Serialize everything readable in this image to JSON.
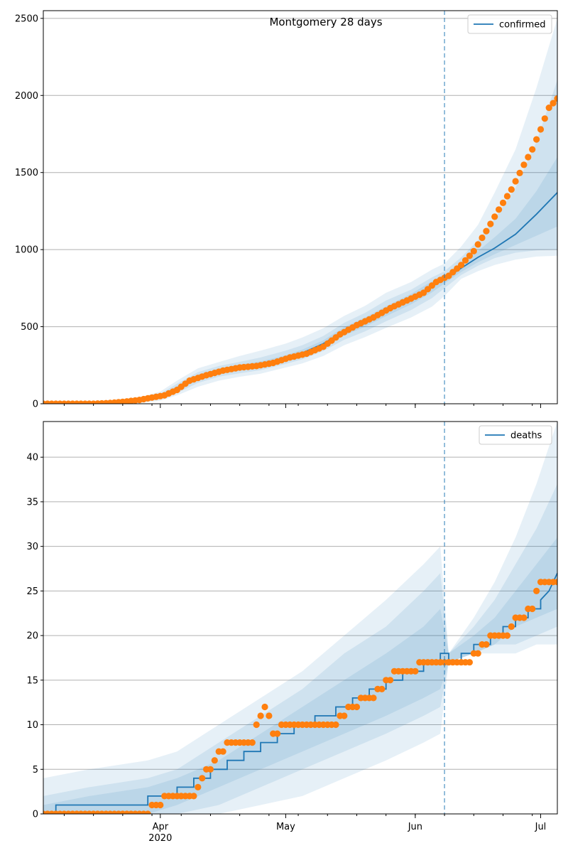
{
  "chart_data": [
    {
      "type": "line",
      "title": "Montgomery 28 days",
      "legend": {
        "entries": [
          "confirmed"
        ],
        "placement": "top-right"
      },
      "xlim": [
        "2020-03-04",
        "2020-07-05"
      ],
      "ylim": [
        0,
        2550
      ],
      "yticks": [
        0,
        500,
        1000,
        1500,
        2000,
        2500
      ],
      "grid": "horizontal",
      "forecast_start": "2020-06-08",
      "series": [
        {
          "name": "confirmed",
          "x": [
            "2020-03-04",
            "2020-03-19",
            "2020-03-25",
            "2020-04-01",
            "2020-04-05",
            "2020-04-10",
            "2020-04-15",
            "2020-04-20",
            "2020-04-25",
            "2020-05-01",
            "2020-05-05",
            "2020-05-10",
            "2020-05-15",
            "2020-05-20",
            "2020-05-25",
            "2020-05-31",
            "2020-06-05",
            "2020-06-08",
            "2020-06-12",
            "2020-06-16",
            "2020-06-20",
            "2020-06-25",
            "2020-06-30",
            "2020-07-05"
          ],
          "values": [
            0,
            0,
            10,
            45,
            100,
            175,
            210,
            235,
            255,
            295,
            330,
            390,
            470,
            530,
            600,
            680,
            760,
            810,
            880,
            950,
            1010,
            1100,
            1230,
            1370
          ]
        }
      ],
      "band_levels": [
        {
          "x": [
            "2020-03-04",
            "2020-03-19",
            "2020-03-25",
            "2020-04-01",
            "2020-04-05",
            "2020-04-10",
            "2020-04-15",
            "2020-04-20",
            "2020-04-25",
            "2020-05-01",
            "2020-05-05",
            "2020-05-10",
            "2020-05-15",
            "2020-05-20",
            "2020-05-25",
            "2020-05-31",
            "2020-06-05",
            "2020-06-08",
            "2020-06-12",
            "2020-06-16",
            "2020-06-20",
            "2020-06-25",
            "2020-06-30",
            "2020-07-05"
          ],
          "lower": [
            0,
            0,
            0,
            20,
            55,
            110,
            150,
            175,
            195,
            235,
            262,
            310,
            380,
            432,
            492,
            560,
            630,
            700,
            810,
            860,
            900,
            935,
            955,
            960
          ],
          "upper": [
            0,
            0,
            25,
            80,
            150,
            230,
            270,
            310,
            345,
            390,
            430,
            490,
            570,
            635,
            720,
            790,
            870,
            910,
            1020,
            1160,
            1370,
            1650,
            2050,
            2500
          ]
        },
        {
          "x": [
            "2020-03-04",
            "2020-03-19",
            "2020-03-25",
            "2020-04-01",
            "2020-04-05",
            "2020-04-10",
            "2020-04-15",
            "2020-04-20",
            "2020-04-25",
            "2020-05-01",
            "2020-05-05",
            "2020-05-10",
            "2020-05-15",
            "2020-05-20",
            "2020-05-25",
            "2020-05-31",
            "2020-06-05",
            "2020-06-08",
            "2020-06-12",
            "2020-06-16",
            "2020-06-20",
            "2020-06-25",
            "2020-06-30",
            "2020-07-05"
          ],
          "lower": [
            0,
            0,
            2,
            30,
            70,
            135,
            175,
            198,
            218,
            258,
            288,
            342,
            415,
            470,
            535,
            608,
            685,
            750,
            835,
            895,
            945,
            980,
            995,
            1000
          ],
          "upper": [
            0,
            0,
            18,
            65,
            130,
            205,
            245,
            272,
            300,
            345,
            380,
            440,
            525,
            590,
            670,
            740,
            820,
            860,
            950,
            1060,
            1200,
            1400,
            1700,
            2100
          ]
        },
        {
          "x": [
            "2020-03-04",
            "2020-03-19",
            "2020-03-25",
            "2020-04-01",
            "2020-04-05",
            "2020-04-10",
            "2020-04-15",
            "2020-04-20",
            "2020-04-25",
            "2020-05-01",
            "2020-05-05",
            "2020-05-10",
            "2020-05-15",
            "2020-05-20",
            "2020-05-25",
            "2020-05-31",
            "2020-06-05",
            "2020-06-08",
            "2020-06-12",
            "2020-06-16",
            "2020-06-20",
            "2020-06-25",
            "2020-06-30",
            "2020-07-05"
          ],
          "lower": [
            0,
            0,
            5,
            37,
            85,
            155,
            192,
            216,
            238,
            277,
            310,
            366,
            442,
            500,
            568,
            645,
            722,
            780,
            855,
            918,
            970,
            1030,
            1090,
            1150
          ],
          "upper": [
            0,
            0,
            14,
            55,
            115,
            190,
            228,
            254,
            275,
            315,
            352,
            412,
            498,
            560,
            632,
            713,
            795,
            835,
            905,
            990,
            1080,
            1200,
            1380,
            1600
          ]
        }
      ],
      "observed": {
        "x": [
          "2020-03-04",
          "2020-03-10",
          "2020-03-16",
          "2020-03-20",
          "2020-03-24",
          "2020-03-27",
          "2020-03-30",
          "2020-04-02",
          "2020-04-05",
          "2020-04-08",
          "2020-04-12",
          "2020-04-16",
          "2020-04-20",
          "2020-04-24",
          "2020-04-28",
          "2020-05-02",
          "2020-05-06",
          "2020-05-10",
          "2020-05-14",
          "2020-05-18",
          "2020-05-22",
          "2020-05-26",
          "2020-05-30",
          "2020-06-03",
          "2020-06-06",
          "2020-06-09",
          "2020-06-12",
          "2020-06-15",
          "2020-06-18",
          "2020-06-21",
          "2020-06-24",
          "2020-06-27",
          "2020-06-29",
          "2020-07-01",
          "2020-07-03",
          "2020-07-05"
        ],
        "values": [
          0,
          0,
          0,
          5,
          15,
          25,
          40,
          55,
          90,
          150,
          185,
          215,
          235,
          245,
          265,
          300,
          325,
          370,
          450,
          510,
          560,
          620,
          670,
          720,
          790,
          830,
          900,
          990,
          1120,
          1260,
          1390,
          1550,
          1650,
          1780,
          1920,
          1980
        ]
      }
    },
    {
      "type": "line",
      "legend": {
        "entries": [
          "deaths"
        ],
        "placement": "top-right"
      },
      "xlim": [
        "2020-03-04",
        "2020-07-05"
      ],
      "ylim": [
        0,
        44
      ],
      "yticks": [
        0,
        5,
        10,
        15,
        20,
        25,
        30,
        35,
        40
      ],
      "xticks": [
        "Apr",
        "May",
        "Jun",
        "Jul"
      ],
      "xtick_sublabel": "2020",
      "grid": "horizontal",
      "forecast_start": "2020-06-08",
      "series": [
        {
          "name": "deaths",
          "x": [
            "2020-03-04",
            "2020-03-07",
            "2020-03-07",
            "2020-03-29",
            "2020-03-29",
            "2020-04-05",
            "2020-04-05",
            "2020-04-09",
            "2020-04-09",
            "2020-04-13",
            "2020-04-13",
            "2020-04-17",
            "2020-04-17",
            "2020-04-21",
            "2020-04-21",
            "2020-04-25",
            "2020-04-25",
            "2020-04-29",
            "2020-04-29",
            "2020-05-03",
            "2020-05-03",
            "2020-05-08",
            "2020-05-08",
            "2020-05-13",
            "2020-05-13",
            "2020-05-17",
            "2020-05-17",
            "2020-05-21",
            "2020-05-21",
            "2020-05-25",
            "2020-05-25",
            "2020-05-29",
            "2020-05-29",
            "2020-06-03",
            "2020-06-03",
            "2020-06-07",
            "2020-06-07",
            "2020-06-09",
            "2020-06-09",
            "2020-06-12",
            "2020-06-12",
            "2020-06-15",
            "2020-06-15",
            "2020-06-19",
            "2020-06-19",
            "2020-06-22",
            "2020-06-22",
            "2020-06-25",
            "2020-06-25",
            "2020-06-28",
            "2020-06-28",
            "2020-07-01",
            "2020-07-01",
            "2020-07-03",
            "2020-07-05"
          ],
          "values": [
            0,
            0,
            1,
            1,
            2,
            2,
            3,
            3,
            4,
            4,
            5,
            5,
            6,
            6,
            7,
            7,
            8,
            8,
            9,
            9,
            10,
            10,
            11,
            11,
            12,
            12,
            13,
            13,
            14,
            14,
            15,
            15,
            16,
            16,
            17,
            17,
            18,
            18,
            17,
            17,
            18,
            18,
            19,
            19,
            20,
            20,
            21,
            21,
            22,
            22,
            23,
            23,
            24,
            25,
            27
          ]
        }
      ],
      "band_levels": [
        {
          "x": [
            "2020-03-04",
            "2020-03-15",
            "2020-03-29",
            "2020-04-05",
            "2020-04-15",
            "2020-04-25",
            "2020-05-05",
            "2020-05-15",
            "2020-05-25",
            "2020-06-03",
            "2020-06-07",
            "2020-06-09",
            "2020-06-15",
            "2020-06-20",
            "2020-06-25",
            "2020-06-30",
            "2020-07-05"
          ],
          "lower": [
            0,
            0,
            0,
            0,
            0,
            1,
            2,
            4,
            6,
            8,
            9,
            17,
            18,
            18,
            18,
            19,
            19
          ],
          "upper": [
            4,
            5,
            6,
            7,
            10,
            13,
            16,
            20,
            24,
            28,
            30,
            18,
            22,
            26,
            31,
            37,
            44
          ]
        },
        {
          "x": [
            "2020-03-04",
            "2020-03-15",
            "2020-03-29",
            "2020-04-05",
            "2020-04-15",
            "2020-04-25",
            "2020-05-05",
            "2020-05-15",
            "2020-05-25",
            "2020-06-03",
            "2020-06-07",
            "2020-06-09",
            "2020-06-15",
            "2020-06-20",
            "2020-06-25",
            "2020-06-30",
            "2020-07-05"
          ],
          "lower": [
            0,
            0,
            0,
            0,
            1,
            3,
            5,
            7,
            9,
            11,
            12,
            17,
            18,
            19,
            19,
            20,
            21
          ],
          "upper": [
            2,
            3,
            4,
            5,
            8,
            11,
            14,
            18,
            21,
            25,
            27,
            18,
            21,
            24,
            28,
            32,
            37
          ]
        },
        {
          "x": [
            "2020-03-04",
            "2020-03-15",
            "2020-03-29",
            "2020-04-05",
            "2020-04-15",
            "2020-04-25",
            "2020-05-05",
            "2020-05-15",
            "2020-05-25",
            "2020-06-03",
            "2020-06-07",
            "2020-06-09",
            "2020-06-15",
            "2020-06-20",
            "2020-06-25",
            "2020-06-30",
            "2020-07-05"
          ],
          "lower": [
            0,
            0,
            0,
            1,
            3,
            5,
            7,
            9,
            11,
            13,
            14,
            17,
            18,
            19,
            21,
            22,
            23
          ],
          "upper": [
            1,
            2,
            3,
            4,
            6,
            9,
            12,
            15,
            18,
            21,
            23,
            18,
            20,
            22,
            25,
            28,
            31
          ]
        }
      ],
      "observed": {
        "x": [
          "2020-03-04",
          "2020-03-12",
          "2020-03-20",
          "2020-03-28",
          "2020-03-31",
          "2020-04-03",
          "2020-04-06",
          "2020-04-09",
          "2020-04-11",
          "2020-04-13",
          "2020-04-15",
          "2020-04-18",
          "2020-04-21",
          "2020-04-23",
          "2020-04-24",
          "2020-04-26",
          "2020-04-28",
          "2020-05-01",
          "2020-05-05",
          "2020-05-10",
          "2020-05-13",
          "2020-05-15",
          "2020-05-17",
          "2020-05-20",
          "2020-05-22",
          "2020-05-24",
          "2020-05-26",
          "2020-05-28",
          "2020-05-31",
          "2020-06-03",
          "2020-06-07",
          "2020-06-10",
          "2020-06-14",
          "2020-06-16",
          "2020-06-18",
          "2020-06-20",
          "2020-06-23",
          "2020-06-25",
          "2020-06-27",
          "2020-06-29",
          "2020-07-01",
          "2020-07-03",
          "2020-07-05"
        ],
        "values": [
          0,
          0,
          0,
          0,
          1,
          2,
          2,
          2,
          4,
          5,
          7,
          8,
          8,
          8,
          10,
          12,
          9,
          10,
          10,
          10,
          10,
          11,
          12,
          13,
          13,
          14,
          15,
          16,
          16,
          17,
          17,
          17,
          17,
          18,
          19,
          20,
          20,
          22,
          22,
          23,
          26,
          26,
          26
        ]
      }
    }
  ]
}
